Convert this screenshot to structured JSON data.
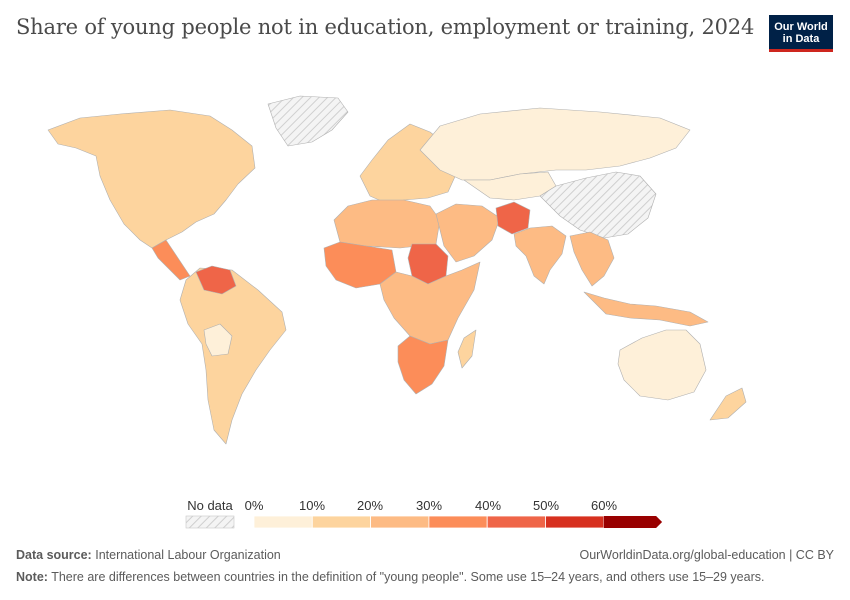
{
  "header": {
    "title": "Share of young people not in education, employment or training, 2024",
    "logo_line1": "Our World",
    "logo_line2": "in Data"
  },
  "map": {
    "scale_colors": [
      "#fef0d9",
      "#fdd49e",
      "#fdbb84",
      "#fc8d59",
      "#ef6548",
      "#d7301f",
      "#990000"
    ],
    "no_data_color": "#e8e8e8",
    "regions": [
      {
        "name": "north-america",
        "bin": 1
      },
      {
        "name": "greenland",
        "bin": -1
      },
      {
        "name": "central-america",
        "bin": 3
      },
      {
        "name": "south-america",
        "bin": 1
      },
      {
        "name": "venezuela",
        "bin": 4
      },
      {
        "name": "bolivia",
        "bin": 0
      },
      {
        "name": "europe",
        "bin": 1
      },
      {
        "name": "russia",
        "bin": 0
      },
      {
        "name": "central-asia",
        "bin": 0
      },
      {
        "name": "china",
        "bin": -1
      },
      {
        "name": "north-africa",
        "bin": 2
      },
      {
        "name": "west-africa",
        "bin": 3
      },
      {
        "name": "sudan",
        "bin": 4
      },
      {
        "name": "southern-africa",
        "bin": 3
      },
      {
        "name": "central-africa",
        "bin": 2
      },
      {
        "name": "madagascar",
        "bin": 1
      },
      {
        "name": "middle-east",
        "bin": 2
      },
      {
        "name": "afghanistan",
        "bin": 4
      },
      {
        "name": "india",
        "bin": 2
      },
      {
        "name": "southeast-asia",
        "bin": 2
      },
      {
        "name": "indonesia",
        "bin": 2
      },
      {
        "name": "australia",
        "bin": 0
      },
      {
        "name": "new-zealand",
        "bin": 1
      }
    ]
  },
  "legend": {
    "no_data_label": "No data",
    "ticks": [
      "0%",
      "10%",
      "20%",
      "30%",
      "40%",
      "50%",
      "60%"
    ]
  },
  "footer": {
    "source_label": "Data source:",
    "source_text": "International Labour Organization",
    "url": "OurWorldinData.org/global-education | CC BY",
    "note_label": "Note:",
    "note_text": "There are differences between countries in the definition of \"young people\". Some use 15–24 years, and others use 15–29 years."
  }
}
